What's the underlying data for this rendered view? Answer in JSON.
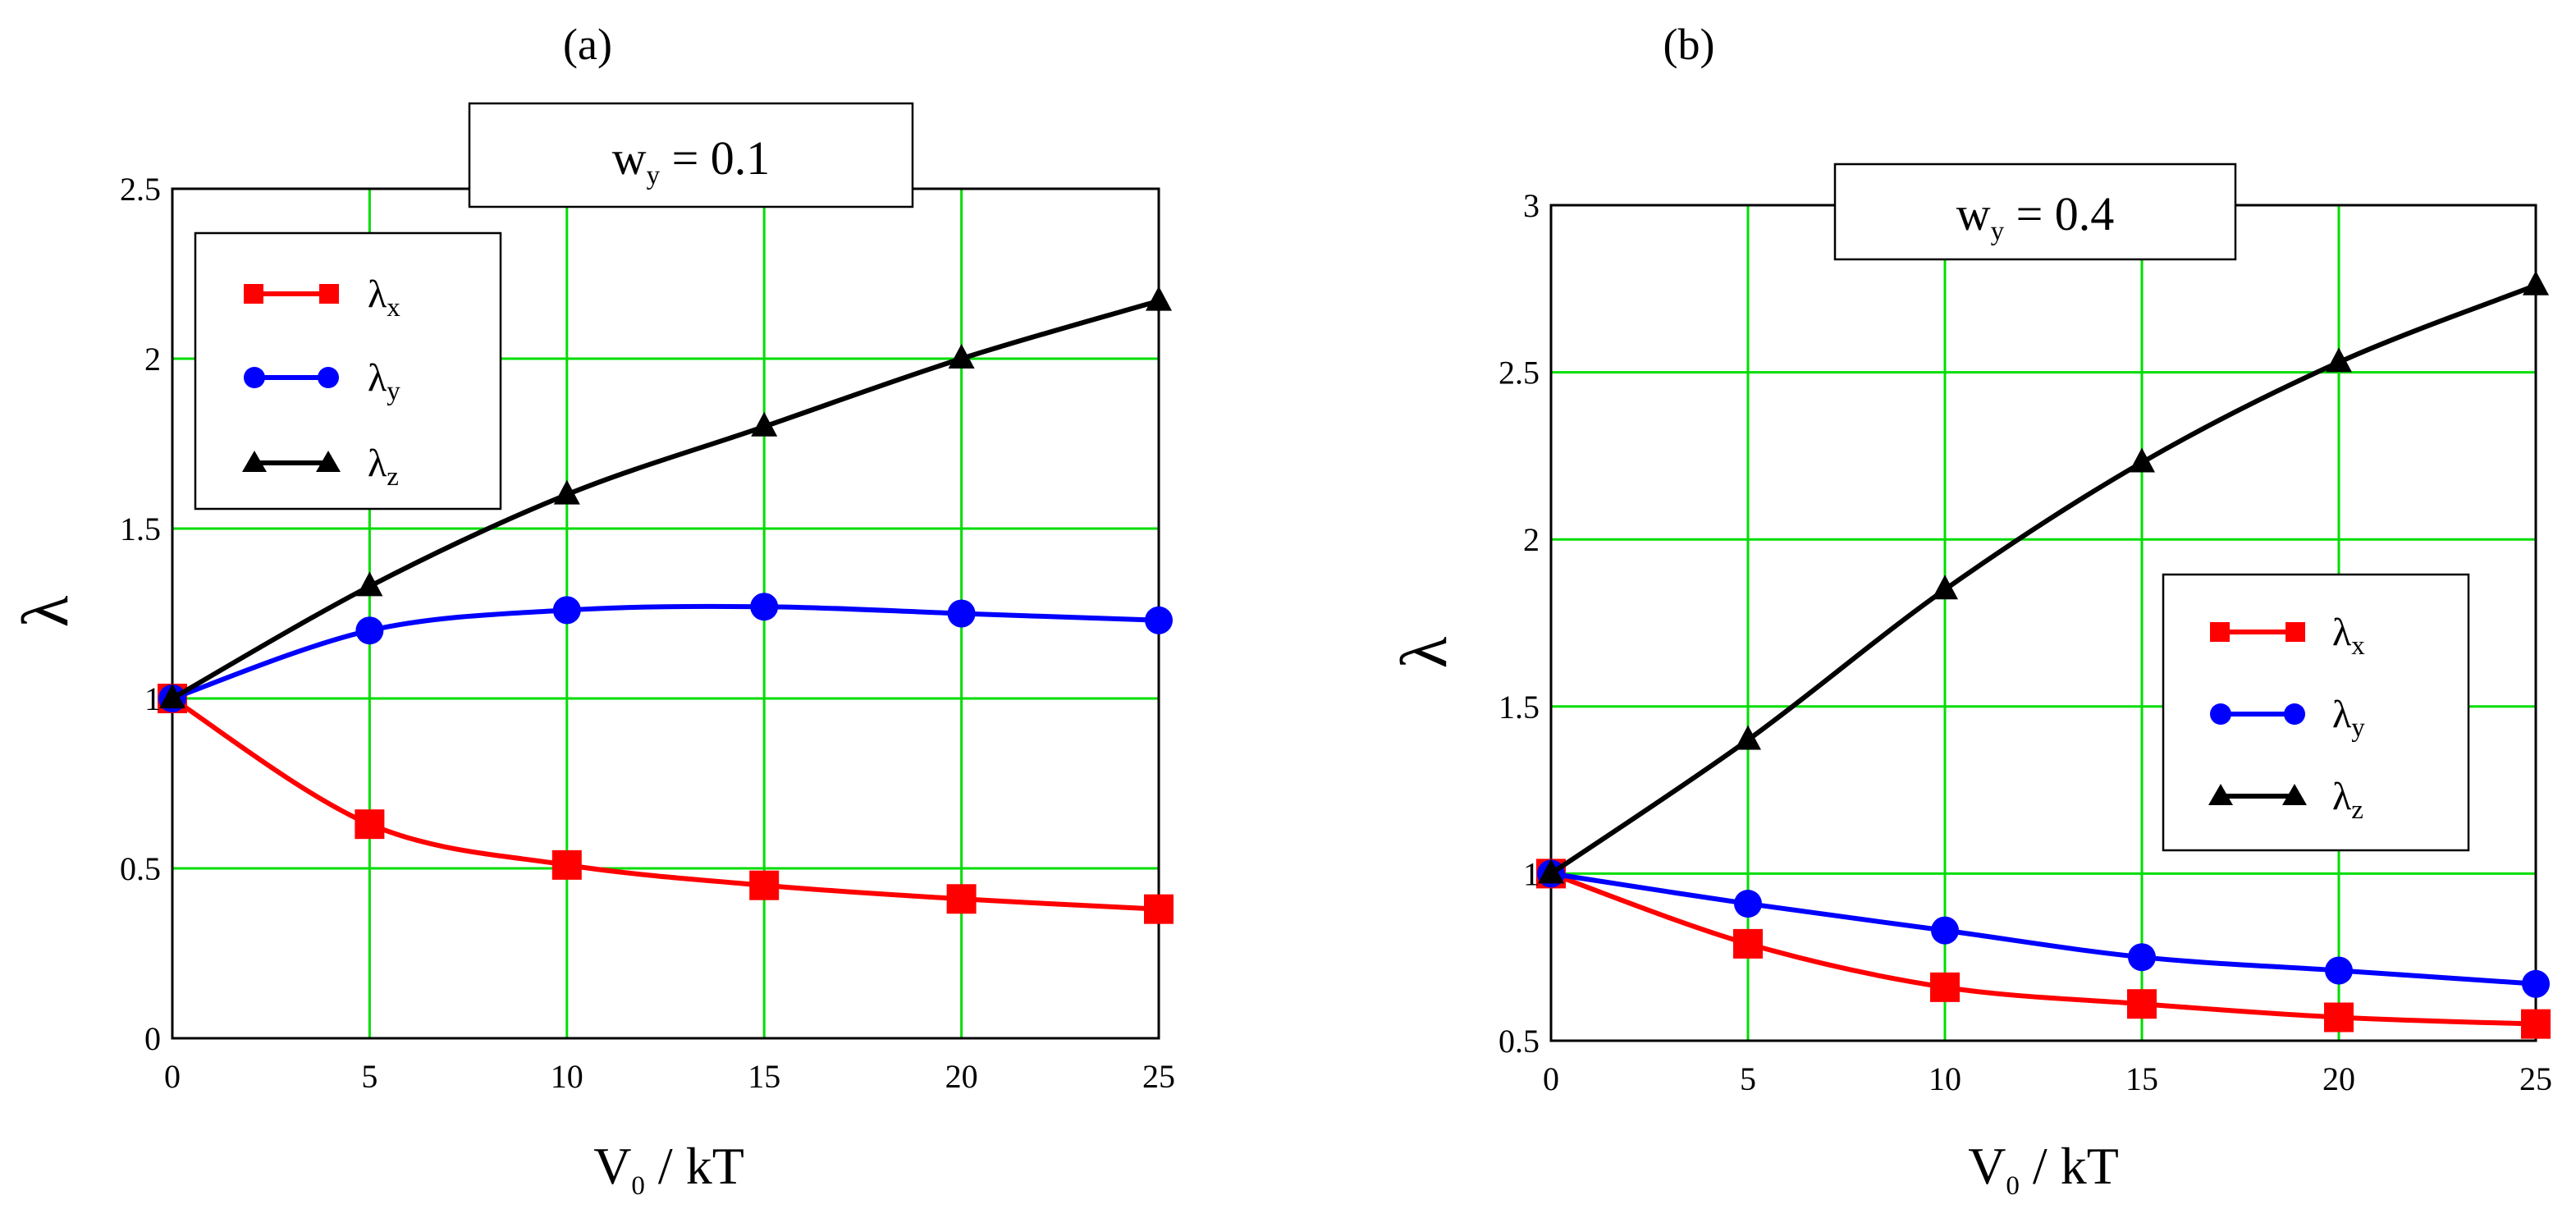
{
  "colors": {
    "grid": "#00dd00",
    "lambda_x": "#ff0000",
    "lambda_y": "#0000ff",
    "lambda_z": "#000000"
  },
  "chart_data": [
    {
      "type": "line",
      "panel_label": "(a)",
      "title": {
        "base": "w",
        "sub": "y",
        "rest": " = 0.1"
      },
      "xlabel": {
        "base": "V",
        "sub": "0",
        "rest": " / kT"
      },
      "ylabel": "λ",
      "xlim": [
        0,
        25
      ],
      "ylim": [
        0,
        2.5
      ],
      "x_ticks": [
        "0",
        "5",
        "10",
        "15",
        "20",
        "25"
      ],
      "y_ticks": [
        "0",
        "0.5",
        "1",
        "1.5",
        "2",
        "2.5"
      ],
      "grid": true,
      "legend_position": "top-left",
      "x": [
        0,
        5,
        10,
        15,
        20,
        25
      ],
      "series": [
        {
          "name": "λx",
          "label_base": "λ",
          "label_sub": "x",
          "color": "#ff0000",
          "marker": "square",
          "values": [
            1.0,
            0.63,
            0.51,
            0.45,
            0.41,
            0.38
          ]
        },
        {
          "name": "λy",
          "label_base": "λ",
          "label_sub": "y",
          "color": "#0000ff",
          "marker": "circle",
          "values": [
            1.0,
            1.2,
            1.26,
            1.27,
            1.25,
            1.23
          ]
        },
        {
          "name": "λz",
          "label_base": "λ",
          "label_sub": "z",
          "color": "#000000",
          "marker": "triangle",
          "values": [
            1.0,
            1.33,
            1.6,
            1.8,
            2.0,
            2.17
          ]
        }
      ]
    },
    {
      "type": "line",
      "panel_label": "(b)",
      "title": {
        "base": "w",
        "sub": "y",
        "rest": " = 0.4"
      },
      "xlabel": {
        "base": "V",
        "sub": "0",
        "rest": " / kT"
      },
      "ylabel": "λ",
      "xlim": [
        0,
        25
      ],
      "ylim": [
        0.5,
        3
      ],
      "x_ticks": [
        "0",
        "5",
        "10",
        "15",
        "20",
        "25"
      ],
      "y_ticks": [
        "0.5",
        "1",
        "1.5",
        "2",
        "2.5",
        "3"
      ],
      "grid": true,
      "legend_position": "center-right",
      "x": [
        0,
        5,
        10,
        15,
        20,
        25
      ],
      "series": [
        {
          "name": "λx",
          "label_base": "λ",
          "label_sub": "x",
          "color": "#ff0000",
          "marker": "square",
          "values": [
            1.0,
            0.79,
            0.66,
            0.61,
            0.57,
            0.55
          ]
        },
        {
          "name": "λy",
          "label_base": "λ",
          "label_sub": "y",
          "color": "#0000ff",
          "marker": "circle",
          "values": [
            1.0,
            0.91,
            0.83,
            0.75,
            0.71,
            0.67
          ]
        },
        {
          "name": "λz",
          "label_base": "λ",
          "label_sub": "z",
          "color": "#000000",
          "marker": "triangle",
          "values": [
            1.0,
            1.4,
            1.85,
            2.23,
            2.53,
            2.76
          ]
        }
      ]
    }
  ]
}
